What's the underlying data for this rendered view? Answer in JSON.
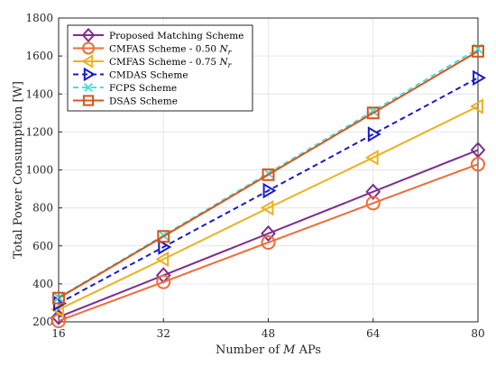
{
  "chart_data": {
    "type": "line",
    "xlabel_prefix": "Number of ",
    "xlabel_var": "M",
    "xlabel_suffix": " APs",
    "ylabel": "Total Power Consumption [W]",
    "xlim": [
      16,
      80
    ],
    "ylim": [
      200,
      1800
    ],
    "xticks": [
      16,
      32,
      48,
      64,
      80
    ],
    "yticks": [
      200,
      400,
      600,
      800,
      1000,
      1200,
      1400,
      1600,
      1800
    ],
    "grid": true,
    "legend_position": "top-left",
    "x": [
      16,
      32,
      48,
      64,
      80
    ],
    "series": [
      {
        "name": "Proposed Matching Scheme",
        "name_var": "",
        "values": [
          225,
          445,
          665,
          885,
          1105
        ],
        "color": "#7E2F8E",
        "marker": "diamond",
        "dash": "solid"
      },
      {
        "name": "CMFAS Scheme - 0.50 ",
        "name_var": "N",
        "name_sub": "r",
        "values": [
          205,
          410,
          618,
          825,
          1030
        ],
        "color": "#F26B38",
        "marker": "circle",
        "dash": "solid"
      },
      {
        "name": "CMFAS Scheme - 0.75 ",
        "name_var": "N",
        "name_sub": "r",
        "values": [
          265,
          530,
          800,
          1065,
          1335
        ],
        "color": "#EDB120",
        "marker": "triangle-left",
        "dash": "solid"
      },
      {
        "name": "CMDAS Scheme",
        "name_var": "",
        "values": [
          297,
          594,
          891,
          1188,
          1485
        ],
        "color": "#1A1ACC",
        "marker": "triangle-right",
        "dash": "dashed"
      },
      {
        "name": "FCPS Scheme",
        "name_var": "",
        "values": [
          328,
          655,
          983,
          1310,
          1638
        ],
        "color": "#45E0E0",
        "marker": "x",
        "dash": "dashed"
      },
      {
        "name": "DSAS Scheme",
        "name_var": "",
        "values": [
          325,
          650,
          975,
          1300,
          1625
        ],
        "color": "#D95319",
        "marker": "square",
        "dash": "solid"
      }
    ]
  }
}
